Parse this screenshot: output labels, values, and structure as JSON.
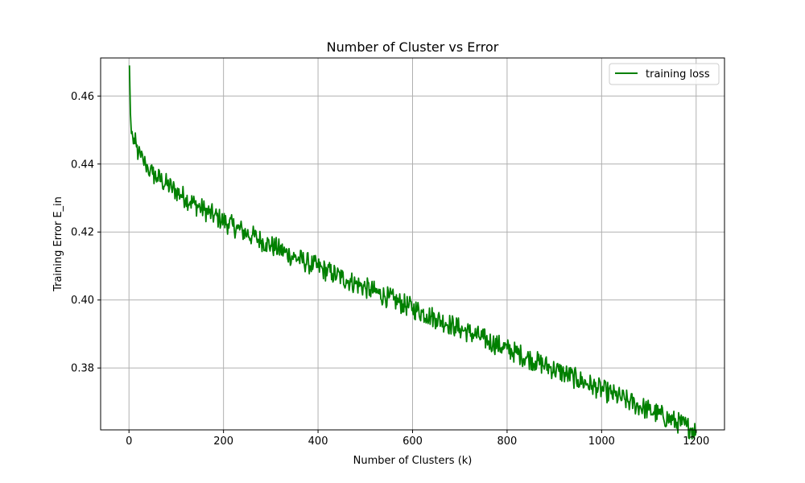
{
  "chart_data": {
    "type": "line",
    "title": "Number of Cluster vs Error",
    "xlabel": "Number of Clusters (k)",
    "ylabel": "Training Error E_in",
    "xlim": [
      -60,
      1260
    ],
    "ylim": [
      0.3618,
      0.4712
    ],
    "xticks": [
      0,
      200,
      400,
      600,
      800,
      1000,
      1200
    ],
    "xtick_labels": [
      "0",
      "200",
      "400",
      "600",
      "800",
      "1000",
      "1200"
    ],
    "yticks": [
      0.38,
      0.4,
      0.42,
      0.44,
      0.46
    ],
    "ytick_labels": [
      "0.38",
      "0.40",
      "0.42",
      "0.44",
      "0.46"
    ],
    "grid": true,
    "legend_position": "top-right",
    "series": [
      {
        "name": "training loss",
        "color": "#008000",
        "x": [
          1,
          2,
          3,
          5,
          8,
          12,
          16,
          20,
          25,
          30,
          35,
          40,
          45,
          50,
          60,
          70,
          80,
          90,
          100,
          110,
          120,
          130,
          140,
          150,
          160,
          170,
          180,
          190,
          200,
          210,
          220,
          230,
          240,
          250,
          260,
          270,
          280,
          290,
          300,
          310,
          320,
          330,
          340,
          350,
          360,
          370,
          380,
          390,
          400,
          410,
          420,
          430,
          440,
          450,
          460,
          470,
          480,
          490,
          500,
          510,
          520,
          530,
          540,
          550,
          560,
          570,
          580,
          590,
          600,
          610,
          620,
          630,
          640,
          650,
          660,
          670,
          680,
          690,
          700,
          710,
          720,
          730,
          740,
          750,
          760,
          770,
          780,
          790,
          800,
          810,
          820,
          830,
          840,
          850,
          860,
          870,
          880,
          890,
          900,
          910,
          920,
          930,
          940,
          950,
          960,
          970,
          980,
          990,
          1000,
          1010,
          1020,
          1030,
          1040,
          1050,
          1060,
          1070,
          1080,
          1090,
          1100,
          1110,
          1120,
          1130,
          1140,
          1150,
          1160,
          1170,
          1180,
          1190,
          1200
        ],
        "y": [
          0.469,
          0.462,
          0.455,
          0.449,
          0.448,
          0.446,
          0.445,
          0.443,
          0.442,
          0.441,
          0.44,
          0.439,
          0.438,
          0.437,
          0.436,
          0.435,
          0.434,
          0.433,
          0.432,
          0.431,
          0.43,
          0.429,
          0.428,
          0.4272,
          0.4264,
          0.4256,
          0.4248,
          0.424,
          0.4232,
          0.4224,
          0.4217,
          0.421,
          0.4203,
          0.4196,
          0.4189,
          0.4182,
          0.4175,
          0.4168,
          0.4161,
          0.4154,
          0.4147,
          0.414,
          0.4133,
          0.4126,
          0.412,
          0.4114,
          0.4108,
          0.4102,
          0.4096,
          0.409,
          0.4084,
          0.4078,
          0.4072,
          0.4066,
          0.406,
          0.4054,
          0.4048,
          0.4042,
          0.4036,
          0.403,
          0.4024,
          0.4018,
          0.4012,
          0.4006,
          0.4,
          0.3994,
          0.3988,
          0.3982,
          0.3976,
          0.397,
          0.3964,
          0.3958,
          0.3952,
          0.3946,
          0.394,
          0.3934,
          0.3928,
          0.3922,
          0.3916,
          0.391,
          0.3904,
          0.3898,
          0.3892,
          0.3886,
          0.388,
          0.3874,
          0.3868,
          0.3862,
          0.3856,
          0.385,
          0.3844,
          0.3838,
          0.3832,
          0.3826,
          0.382,
          0.3814,
          0.3808,
          0.3802,
          0.3796,
          0.379,
          0.3784,
          0.3778,
          0.3772,
          0.3766,
          0.376,
          0.3754,
          0.3748,
          0.3742,
          0.3736,
          0.373,
          0.3724,
          0.3718,
          0.3712,
          0.3706,
          0.37,
          0.3694,
          0.3688,
          0.3682,
          0.3676,
          0.367,
          0.3664,
          0.3658,
          0.3652,
          0.3646,
          0.364,
          0.3634,
          0.3628,
          0.3622,
          0.3616
        ]
      }
    ]
  }
}
